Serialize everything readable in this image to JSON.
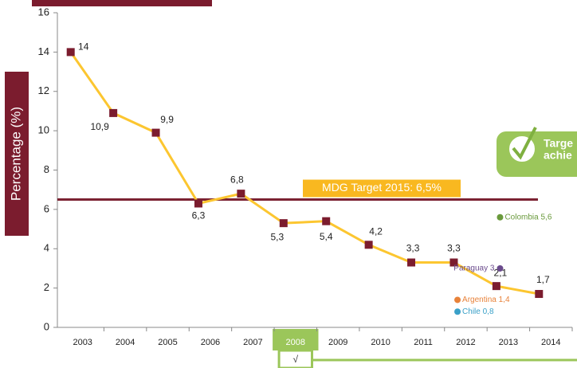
{
  "chart_data": {
    "type": "line",
    "y_label": "Percentage (%)",
    "categories": [
      "2003",
      "2004",
      "2005",
      "2006",
      "2007",
      "2008",
      "2009",
      "2010",
      "2011",
      "2012",
      "2013",
      "2014"
    ],
    "values": [
      14,
      10.9,
      9.9,
      6.3,
      6.8,
      5.3,
      5.4,
      4.2,
      3.3,
      3.3,
      2.1,
      1.7
    ],
    "value_labels": [
      "14",
      "10,9",
      "9,9",
      "6,3",
      "6,8",
      "5,3",
      "5,4",
      "4,2",
      "3,3",
      "3,3",
      "2,1",
      "1,7"
    ],
    "color": "#fcc630",
    "marker_color": "#7b1c2e",
    "ylim": [
      0,
      16
    ],
    "yticks": [
      0,
      2,
      4,
      6,
      8,
      10,
      12,
      14,
      16
    ],
    "target": {
      "label": "MDG Target 2015: 6,5%",
      "value": 6.5,
      "color": "#7b2232"
    },
    "highlight": {
      "category": "2008",
      "mark": "√",
      "color": "#9bc65a"
    },
    "badge": {
      "lines": [
        "Targe",
        "achie"
      ],
      "color": "#9bc65a"
    },
    "points": [
      {
        "label": "Colombia 5,6",
        "value": 5.6,
        "category": "2012",
        "color": "#6a9a3c"
      },
      {
        "label": "Paraguay 3",
        "value": 3,
        "category": "2012",
        "color": "#6a4a8c"
      },
      {
        "label": "Argentina 1,4",
        "value": 1.4,
        "category": "2011",
        "color": "#e8823a"
      },
      {
        "label": "Chile 0,8",
        "value": 0.8,
        "category": "2011",
        "color": "#3aa0c8"
      }
    ]
  }
}
